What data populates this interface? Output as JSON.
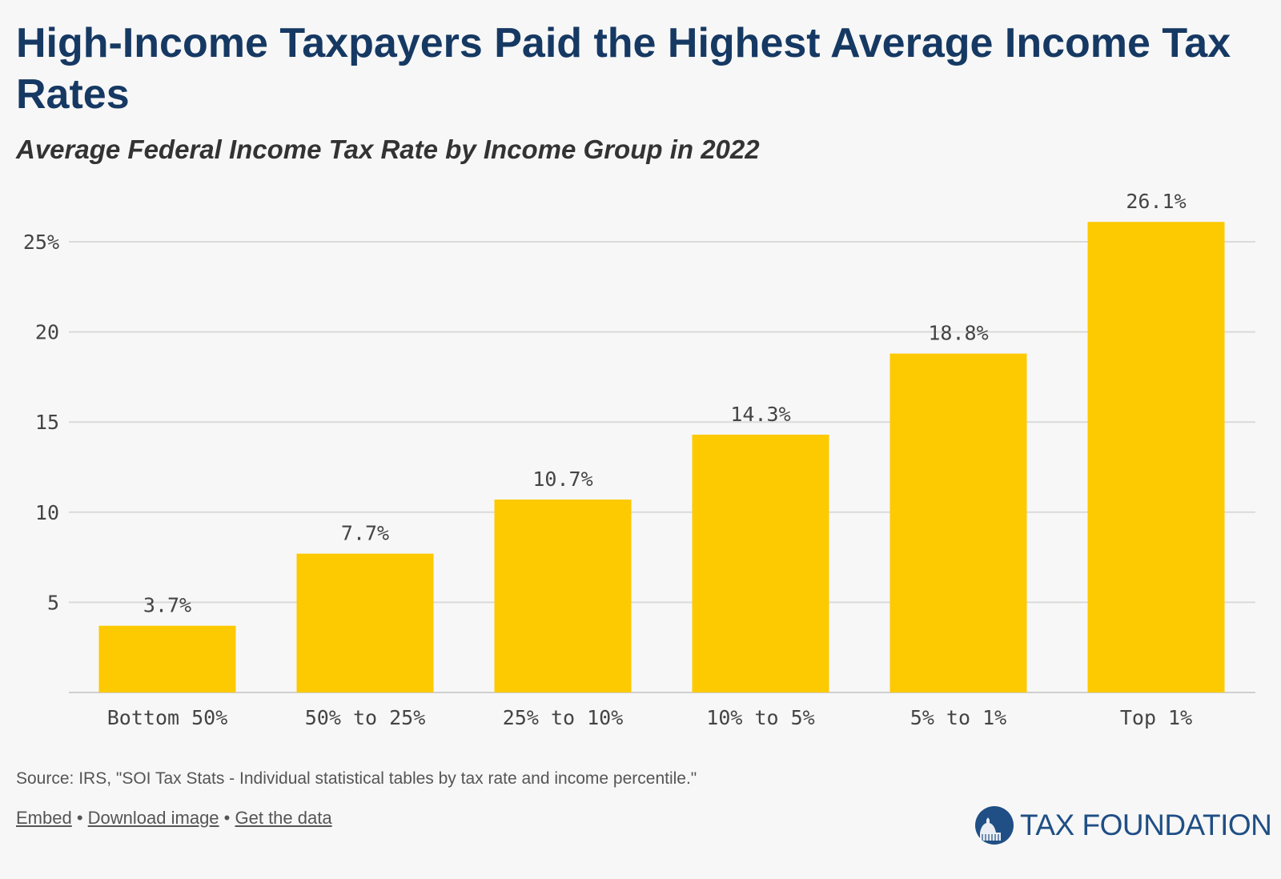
{
  "title": "High-Income Taxpayers Paid the Highest Average Income Tax Rates",
  "subtitle": "Average Federal Income Tax Rate by Income Group in 2022",
  "chart_data": {
    "type": "bar",
    "title": "High-Income Taxpayers Paid the Highest Average Income Tax Rates",
    "subtitle": "Average Federal Income Tax Rate by Income Group in 2022",
    "categories": [
      "Bottom 50%",
      "50% to 25%",
      "25% to 10%",
      "10% to 5%",
      "5% to 1%",
      "Top 1%"
    ],
    "values": [
      3.7,
      7.7,
      10.7,
      14.3,
      18.8,
      26.1
    ],
    "data_labels": [
      "3.7%",
      "7.7%",
      "10.7%",
      "14.3%",
      "18.8%",
      "26.1%"
    ],
    "yticks": [
      5,
      10,
      15,
      20,
      25
    ],
    "ytick_labels": [
      "5",
      "10",
      "15",
      "20",
      "25%"
    ],
    "ylim": [
      0,
      27
    ],
    "xlabel": "",
    "ylabel": "",
    "grid": true,
    "bar_color": "#fdc900"
  },
  "footer": {
    "source": "Source: IRS, \"SOI Tax Stats - Individual statistical tables by tax rate and income percentile.\"",
    "links": [
      "Embed",
      "Download image",
      "Get the data"
    ],
    "separator": "•"
  },
  "logo": {
    "text": "TAX FOUNDATION",
    "icon": "capitol-dome-icon",
    "color": "#1f4f85"
  }
}
